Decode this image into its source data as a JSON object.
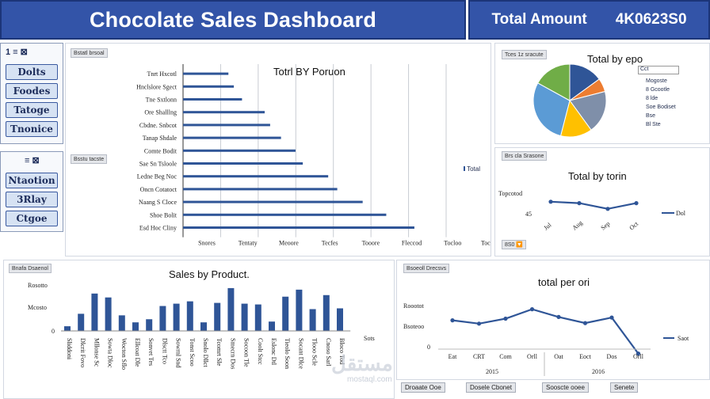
{
  "header": {
    "title": "Chocolate Sales Dashboard",
    "total_label": "Total Amount",
    "total_value": "4K0623S0"
  },
  "slicer_top": {
    "heading": "1 ≡ ⊠",
    "items": [
      "Dolts",
      "Foodes",
      "Tatoge",
      "Tnonice"
    ]
  },
  "slicer_bottom": {
    "heading": "≡ ⊠",
    "items": [
      "Ntaotion",
      "3Rlay",
      "Ctgoe"
    ]
  },
  "person_chart": {
    "tag": "Bstatl brsoal",
    "tag2": "Bsstu tacste",
    "title": "Totrl BY Poruon",
    "legend": "Total",
    "chart_data": {
      "type": "bar",
      "orientation": "horizontal",
      "categories": [
        "Tnrt Hxcotl",
        "Hnclslore Sgect",
        "Tne Sxtlonn",
        "Ore Shalllng",
        "Cbdne. Snbcot",
        "Tanap Shdale",
        "Comte Bodit",
        "Sae Sn Tsloole",
        "Ledne Beg Noc",
        "Oncn Cotatoct",
        "Naang S Cloce",
        "Shoe Bolit",
        "Esd Hoc Cliny"
      ],
      "values": [
        50,
        56,
        65,
        90,
        96,
        108,
        124,
        132,
        160,
        170,
        198,
        224,
        255
      ],
      "x_ticks": [
        "Snores",
        "Tentaty",
        "Meoore",
        "Tecfes",
        "Tooore",
        "Fleccod",
        "Tocloo",
        "Toc Ccicc"
      ]
    }
  },
  "type_chart": {
    "tag": "Tces 1z sracute",
    "title": "Total by epo",
    "legend_title": "Cct",
    "legend": [
      "Mogoste",
      "8 Gcootle",
      "8 lde",
      "Soe Bodiset",
      "Bse",
      "Bl Ste"
    ],
    "colors": [
      "#2f5597",
      "#ed7d31",
      "#7f8fa9",
      "#ffc000",
      "#5b9bd5",
      "#70ad47"
    ],
    "chart_data": {
      "type": "pie",
      "values": [
        15,
        6,
        19,
        14,
        29,
        17
      ]
    }
  },
  "month_chart": {
    "tag": "Brs cla Srasone",
    "title": "Total by torin",
    "y_label": "Topcotod",
    "y_label2": "45",
    "legend": "Dol",
    "chart_data": {
      "type": "line",
      "categories": [
        "Jul",
        "Aug",
        "Sep",
        "Oct"
      ],
      "values": [
        58,
        56,
        48,
        56
      ]
    },
    "footer_btn": "8S0 🔽"
  },
  "product_chart": {
    "tag": "Bnafa Dsaenol",
    "title": "Sales by Product.",
    "y_ticks": [
      "Rosotto",
      "Mcosto",
      "0"
    ],
    "legend": "Sots",
    "chart_data": {
      "type": "bar",
      "values": [
        6,
        22,
        48,
        43,
        20,
        11,
        15,
        32,
        35,
        38,
        11,
        36,
        55,
        35,
        34,
        12,
        44,
        53,
        28,
        46,
        29
      ],
      "categories": [
        "Sliddoni",
        "Dlcrit Fovo",
        "Mllonse Sc",
        "Sowta Dloc",
        "Wocton Sflo",
        "Ellcoat Dle",
        "Sonvet Tes",
        "Dlsctt Tco",
        "Sowrnl Snd",
        "Tonst Scoo",
        "Snolo Dllct",
        "Tcomrt Sle",
        "Smecrn Dos",
        "Socoon Tle",
        "Coolt Stcc",
        "Eslonc Dtl",
        "Tieolo Soon",
        "Socant Dlce",
        "Tlooo Scle",
        "Cnoso Sarl",
        "Bloco Tod"
      ]
    }
  },
  "country_chart": {
    "tag": "Bsoeoll Drecsvs",
    "title": "total per ori",
    "y_ticks": [
      "Roootot",
      "Bsoteoo",
      "0"
    ],
    "legend": "Saot",
    "chart_data": {
      "type": "line",
      "categories": [
        "Eat",
        "CRT",
        "Com",
        "Orll",
        "Oat",
        "Eoct",
        "Dos",
        "Orll"
      ],
      "groups": [
        "2015",
        "2016"
      ],
      "values": [
        32,
        26,
        35,
        52,
        38,
        27,
        37,
        -28
      ]
    }
  },
  "bottom_buttons": [
    "Droaate Ooe",
    "Dosele Cbonet",
    "Sooscte ooee",
    "Senete"
  ],
  "watermark": {
    "text": "مستقل",
    "url": "mostaql.com"
  }
}
